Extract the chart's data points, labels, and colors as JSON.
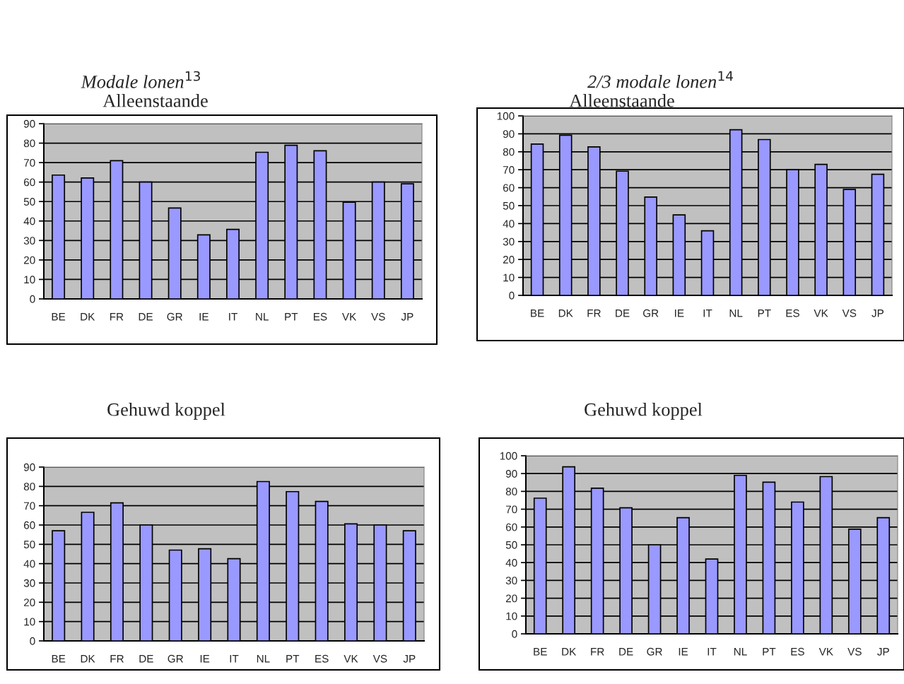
{
  "chart_data": [
    {
      "type": "bar",
      "title": "Modale lonen$^{13}$",
      "subtitle": "Alleenstaande",
      "categories": [
        "BE",
        "DK",
        "FR",
        "DE",
        "GR",
        "IE",
        "IT",
        "NL",
        "PT",
        "ES",
        "VK",
        "VS",
        "JP"
      ],
      "values": [
        63.6,
        62.1,
        71,
        60,
        46.7,
        32.9,
        35.7,
        75.3,
        78.9,
        76.1,
        49.7,
        60,
        59.1
      ],
      "color": "#9999ff",
      "ylim": [
        0,
        90
      ],
      "yticks": [
        0,
        10,
        20,
        30,
        40,
        50,
        60,
        70,
        80,
        90
      ],
      "grid": "y"
    },
    {
      "type": "bar",
      "title": "2/3 modale lonen$^{14}$",
      "subtitle": "Alleenstaande",
      "categories": [
        "BE",
        "DK",
        "FR",
        "DE",
        "GR",
        "IE",
        "IT",
        "NL",
        "PT",
        "ES",
        "VK",
        "VS",
        "JP"
      ],
      "values": [
        84.3,
        89.2,
        82.7,
        69.2,
        54.8,
        44.8,
        36,
        92.3,
        86.8,
        70,
        73,
        59,
        67.5
      ],
      "color": "#9999ff",
      "ylim": [
        0,
        100
      ],
      "yticks": [
        0,
        10,
        20,
        30,
        40,
        50,
        60,
        70,
        80,
        90,
        100
      ],
      "grid": "y"
    },
    {
      "type": "bar",
      "title": "Gehuwd koppel",
      "categories": [
        "BE",
        "DK",
        "FR",
        "DE",
        "GR",
        "IE",
        "IT",
        "NL",
        "PT",
        "ES",
        "VK",
        "VS",
        "JP"
      ],
      "values": [
        57,
        66.6,
        71.5,
        60,
        47,
        47.7,
        42.6,
        82.5,
        77.3,
        72.2,
        60.6,
        60,
        57
      ],
      "color": "#9999ff",
      "ylim": [
        0,
        90
      ],
      "yticks": [
        0,
        10,
        20,
        30,
        40,
        50,
        60,
        70,
        80,
        90
      ],
      "grid": "y"
    },
    {
      "type": "bar",
      "title": "Gehuwd koppel",
      "categories": [
        "BE",
        "DK",
        "FR",
        "DE",
        "GR",
        "IE",
        "IT",
        "NL",
        "PT",
        "ES",
        "VK",
        "VS",
        "JP"
      ],
      "values": [
        76.2,
        93.8,
        81.8,
        70.8,
        50,
        65.2,
        42,
        89,
        85.2,
        74,
        88.3,
        58.8,
        65.2
      ],
      "color": "#9999ff",
      "ylim": [
        0,
        100
      ],
      "yticks": [
        0,
        10,
        20,
        30,
        40,
        50,
        60,
        70,
        80,
        90,
        100
      ],
      "grid": "y"
    }
  ]
}
